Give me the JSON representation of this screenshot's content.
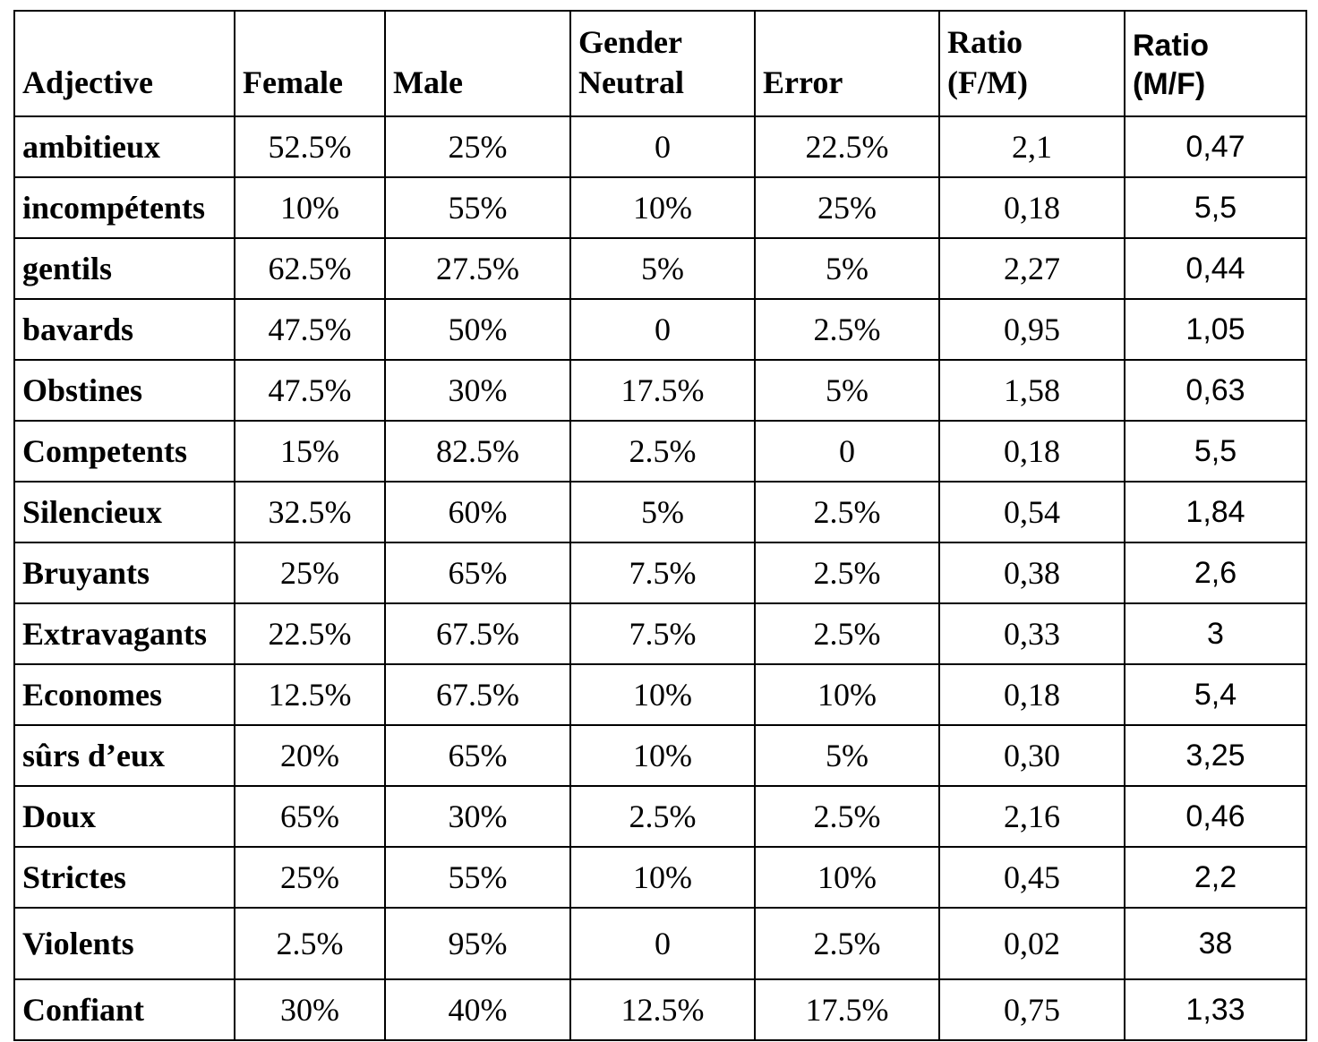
{
  "table": {
    "headers": [
      [
        "Adjective"
      ],
      [
        "Female"
      ],
      [
        "Male"
      ],
      [
        "Gender",
        "Neutral"
      ],
      [
        "Error"
      ],
      [
        "Ratio",
        "(F/M)"
      ],
      [
        "Ratio",
        "(M/F)"
      ]
    ],
    "rows": [
      [
        "ambitieux",
        "52.5%",
        "25%",
        "0",
        "22.5%",
        "2,1",
        "0,47"
      ],
      [
        "incompétents",
        "10%",
        "55%",
        "10%",
        "25%",
        "0,18",
        "5,5"
      ],
      [
        "gentils",
        "62.5%",
        "27.5%",
        "5%",
        "5%",
        "2,27",
        "0,44"
      ],
      [
        "bavards",
        "47.5%",
        "50%",
        "0",
        "2.5%",
        "0,95",
        "1,05"
      ],
      [
        "Obstines",
        "47.5%",
        "30%",
        "17.5%",
        "5%",
        "1,58",
        "0,63"
      ],
      [
        "Competents",
        "15%",
        "82.5%",
        "2.5%",
        "0",
        "0,18",
        "5,5"
      ],
      [
        "Silencieux",
        "32.5%",
        "60%",
        "5%",
        "2.5%",
        "0,54",
        "1,84"
      ],
      [
        "Bruyants",
        "25%",
        "65%",
        "7.5%",
        "2.5%",
        "0,38",
        "2,6"
      ],
      [
        "Extravagants",
        "22.5%",
        "67.5%",
        "7.5%",
        "2.5%",
        "0,33",
        "3"
      ],
      [
        "Economes",
        "12.5%",
        "67.5%",
        "10%",
        "10%",
        "0,18",
        "5,4"
      ],
      [
        "sûrs d’eux",
        "20%",
        "65%",
        "10%",
        "5%",
        "0,30",
        "3,25"
      ],
      [
        "Doux",
        "65%",
        "30%",
        "2.5%",
        "2.5%",
        "2,16",
        "0,46"
      ],
      [
        "Strictes",
        "25%",
        "55%",
        "10%",
        "10%",
        "0,45",
        "2,2"
      ],
      [
        "Violents",
        "2.5%",
        "95%",
        "0",
        "2.5%",
        "0,02",
        "38"
      ],
      [
        "Confiant",
        "30%",
        "40%",
        "12.5%",
        "17.5%",
        "0,75",
        "1,33"
      ]
    ]
  }
}
